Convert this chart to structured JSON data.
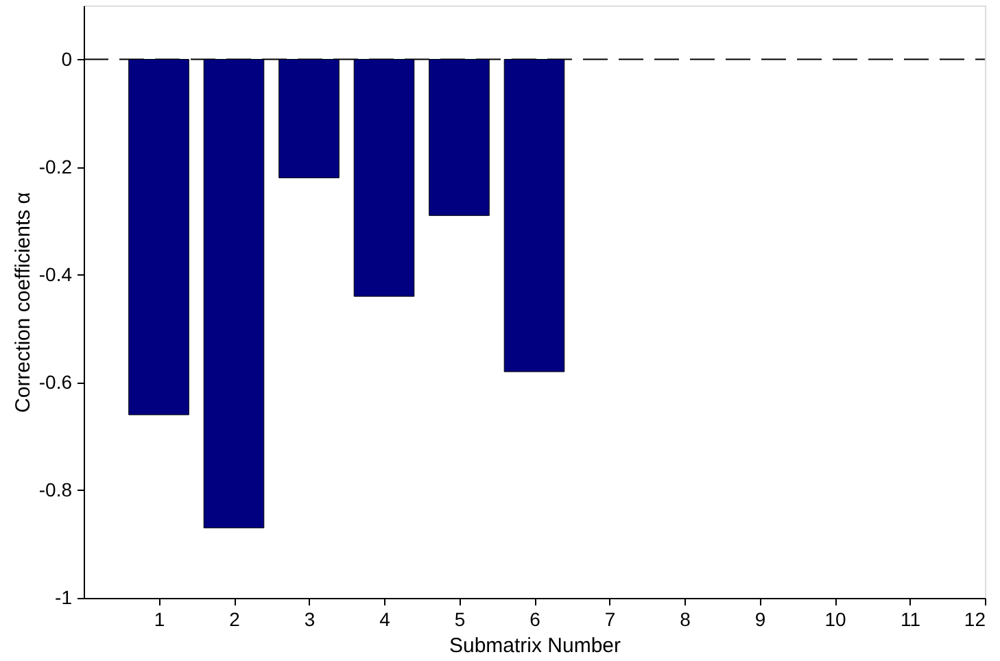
{
  "chart_data": {
    "type": "bar",
    "xlabel": "Submatrix Number",
    "ylabel": "Correction coefficients α",
    "x": [
      1,
      2,
      3,
      4,
      5,
      6
    ],
    "values": [
      -0.66,
      -0.87,
      -0.22,
      -0.44,
      -0.29,
      -0.58
    ],
    "color": "#000080",
    "xlim": [
      0,
      12
    ],
    "xticks": [
      1,
      2,
      3,
      4,
      5,
      6,
      7,
      8,
      9,
      10,
      11,
      12
    ],
    "ylim": [
      -1,
      0.1
    ],
    "yticks": [
      -1,
      -0.8,
      -0.6,
      -0.4,
      -0.2,
      0
    ],
    "grid": false,
    "ref_lines": [
      {
        "axis": "y",
        "value": 0,
        "color": "#000000",
        "line_style": "dashed"
      }
    ]
  }
}
